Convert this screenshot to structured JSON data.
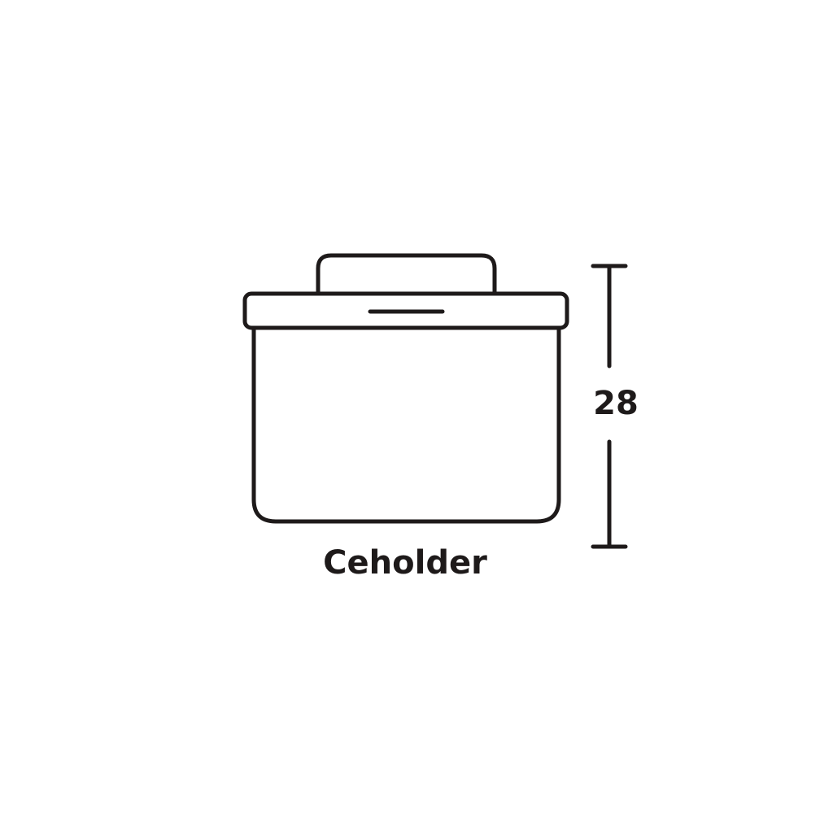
{
  "icon": {
    "name": "storage-container-icon"
  },
  "label": "Ceholder",
  "dimension": {
    "value": "28"
  },
  "colors": {
    "stroke": "#1e1a1a",
    "background": "#ffffff"
  }
}
